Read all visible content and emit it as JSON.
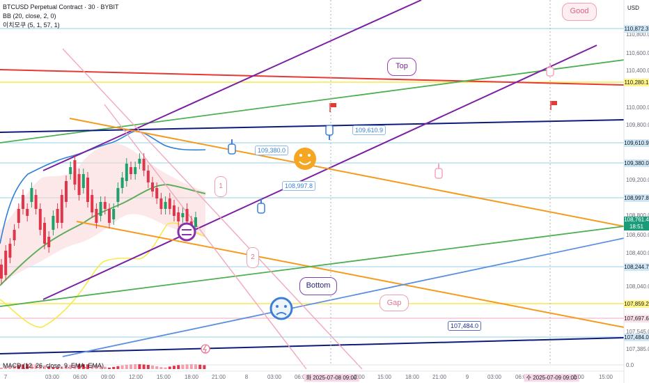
{
  "legend": {
    "symbol": "BTCUSD Perpetual Contract · 30 · BYBIT",
    "bb": "BB (20, close, 2, 0)",
    "ichimoku": "이치모쿠 (5, 1, 57, 1)"
  },
  "macd_legend": "MACD (12, 26, close, 9, EMA, EMA)",
  "axis_unit": "USD",
  "price_tags": [
    {
      "label": "110,872.3",
      "bg": "#cfe6f5"
    },
    {
      "label": "110,280.1",
      "bg": "#fff58a"
    },
    {
      "label": "109,610.9",
      "bg": "#cfe6f5"
    },
    {
      "label": "109,380.0",
      "bg": "#cfe6f5"
    },
    {
      "label": "108,997.8",
      "bg": "#cfe6f5"
    },
    {
      "label": "108,244.7",
      "bg": "#cfe6f5"
    },
    {
      "label": "107,859.2",
      "bg": "#fff58a"
    },
    {
      "label": "107,697.6",
      "bg": "#fbe0e8"
    },
    {
      "label": "107,484.0",
      "bg": "#cfe6f5"
    }
  ],
  "y_ticks": [
    "110,800.0",
    "110,600.0",
    "110,400.0",
    "110,000.0",
    "109,800.0",
    "109,200.0",
    "108,800.0",
    "108,600.0",
    "108,400.0",
    "108,040.0",
    "107,545.0",
    "107,385.0",
    "0.0"
  ],
  "last_price": {
    "price": "108,761.4",
    "countdown": "18:51"
  },
  "x_ticks": [
    {
      "label": "7"
    },
    {
      "label": "03:00"
    },
    {
      "label": "06:00"
    },
    {
      "label": "09:00"
    },
    {
      "label": "12:00"
    },
    {
      "label": "15:00"
    },
    {
      "label": "18:00"
    },
    {
      "label": "21:00"
    },
    {
      "label": "8"
    },
    {
      "label": "03:00"
    },
    {
      "label": "06:00"
    },
    {
      "label": "화 2025-07-08 09:00",
      "highlight": true
    },
    {
      "label": "2:00"
    },
    {
      "label": "15:00"
    },
    {
      "label": "18:00"
    },
    {
      "label": "21:00"
    },
    {
      "label": "9"
    },
    {
      "label": "03:00"
    },
    {
      "label": "06:00"
    },
    {
      "label": "수 2025-07-09 09:00",
      "highlight": true
    },
    {
      "label": "2:00"
    },
    {
      "label": "15:00"
    }
  ],
  "callouts": {
    "c1": "109,380.0",
    "c2": "109,610.9",
    "c3": "108,997.8",
    "c4": "107,484.0"
  },
  "bubbles": {
    "top": "Top",
    "bottom": "Bottom",
    "good": "Good",
    "gap": "Gap",
    "n1": "1",
    "n2": "2"
  },
  "colors": {
    "up_candle": "#22a06b",
    "down_candle": "#e0364a",
    "purple_line": "#7b1fa2",
    "orange_line": "#f59a1b",
    "green_line": "#4caf50",
    "navy_line": "#0d1b7a",
    "red_line": "#e53935",
    "yellow_line": "#f7e94a",
    "blue_line": "#5b8fe0",
    "pink_line": "#f2a7bd"
  }
}
